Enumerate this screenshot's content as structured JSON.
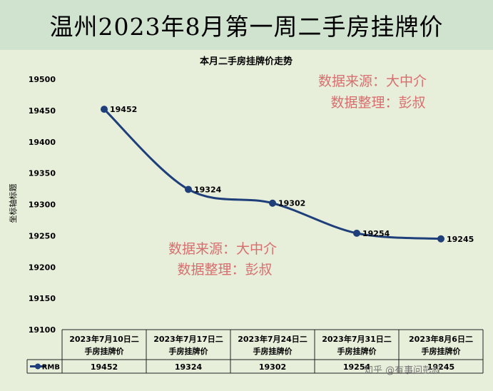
{
  "banner": {
    "title": "温州2023年8月第一周二手房挂牌价"
  },
  "watermarks": {
    "top_source": "数据来源：大中介",
    "top_compiler": "数据整理：彭叔",
    "mid_source": "数据来源：大中介",
    "mid_compiler": "数据整理：彭叔",
    "site": "知乎 @有事问彭叔"
  },
  "colors": {
    "banner_bg": "#cfe3cf",
    "plot_bg": "#e7eed9",
    "line": "#1f3f7a",
    "watermark": "#d86f6f"
  },
  "chart_data": {
    "type": "line",
    "title": "本月二手房挂牌价走势",
    "ylabel": "坐标轴标题",
    "xlabel": "",
    "ylim": [
      19100,
      19500
    ],
    "yticks": [
      19100,
      19150,
      19200,
      19250,
      19300,
      19350,
      19400,
      19450,
      19500
    ],
    "grid": false,
    "smooth": true,
    "categories": [
      "2023年7月10日二手房挂牌价",
      "2023年7月17日二手房挂牌价",
      "2023年7月24日二手房挂牌价",
      "2023年7月31日二手房挂牌价",
      "2023年8月6日二手房挂牌价"
    ],
    "series": [
      {
        "name": "RMB",
        "values": [
          19452,
          19324,
          19302,
          19254,
          19245
        ]
      }
    ],
    "data_table": true
  }
}
